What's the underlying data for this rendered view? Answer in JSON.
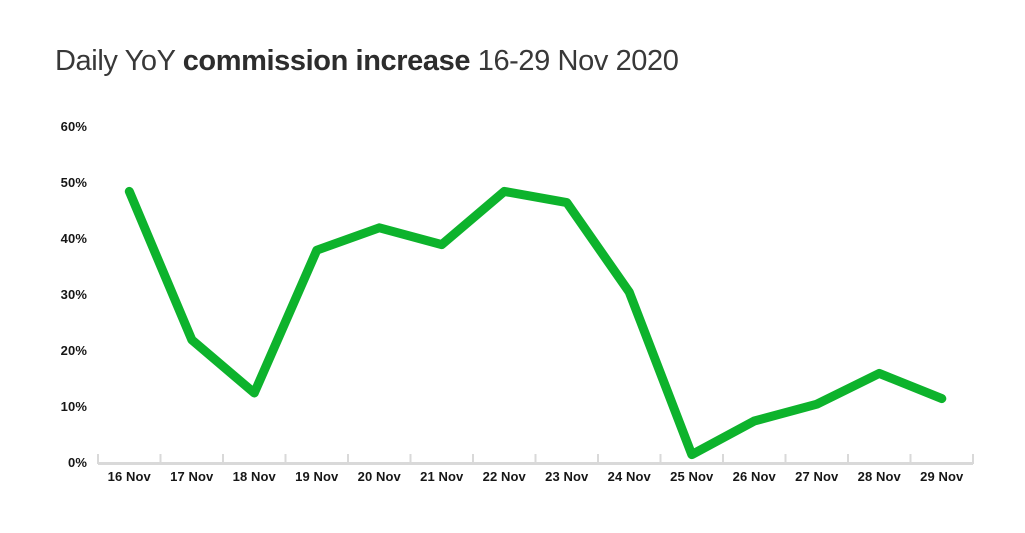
{
  "title": {
    "prefix": "Daily YoY ",
    "bold": "commission increase",
    "suffix": " 16-29 Nov 2020"
  },
  "chart_data": {
    "type": "line",
    "title": "Daily YoY commission increase 16-29 Nov 2020",
    "categories": [
      "16 Nov",
      "17 Nov",
      "18 Nov",
      "19 Nov",
      "20 Nov",
      "21 Nov",
      "22 Nov",
      "23 Nov",
      "24 Nov",
      "25 Nov",
      "26 Nov",
      "27 Nov",
      "28 Nov",
      "29 Nov"
    ],
    "values": [
      48.5,
      22,
      12.5,
      38,
      42,
      39,
      48.5,
      46.5,
      30.5,
      1.5,
      7.5,
      10.5,
      16,
      11.5
    ],
    "unit": "%",
    "xlabel": "",
    "ylabel": "",
    "ylim": [
      0,
      60
    ],
    "ytick_step": 10,
    "ytick_labels": [
      "0%",
      "10%",
      "20%",
      "30%",
      "40%",
      "50%",
      "60%"
    ],
    "grid": false,
    "legend": false,
    "colors": {
      "line": "#0db32c",
      "axis": "#d9d9d9",
      "tick": "#d9d9d9",
      "label": "#161616",
      "title": "#383838",
      "background": "#ffffff"
    }
  }
}
